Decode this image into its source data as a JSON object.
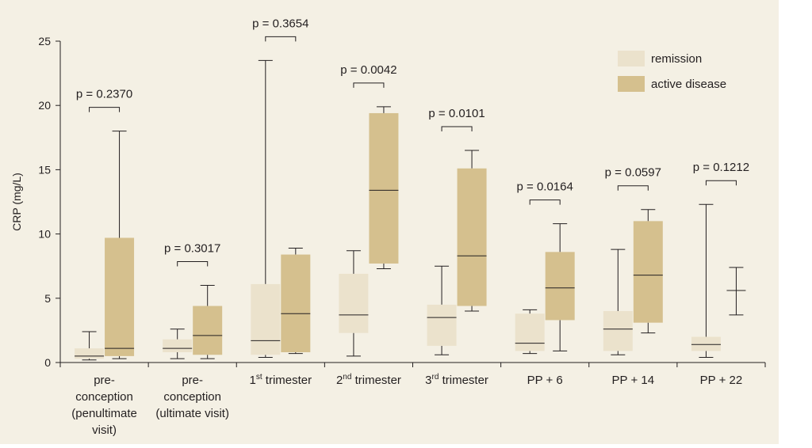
{
  "chart_data": {
    "type": "box",
    "ylabel": "CRP (mg/L)",
    "ylim": [
      0,
      25
    ],
    "yticks": [
      0,
      5,
      10,
      15,
      20,
      25
    ],
    "grid": false,
    "legend_position": "top-right",
    "colors": {
      "remission": "#ebe2cc",
      "active disease": "#d5c08e",
      "background": "#f4f0e4",
      "ink": "#231f20"
    },
    "series": [
      {
        "name": "remission"
      },
      {
        "name": "active disease"
      }
    ],
    "groups": [
      {
        "label_lines": [
          "pre-",
          "conception",
          "(penultimate",
          "visit)"
        ],
        "p_value": "p = 0.2370",
        "remission": {
          "min": 0.2,
          "q1": 0.3,
          "median": 0.5,
          "q3": 1.1,
          "max": 2.4
        },
        "active disease": {
          "min": 0.3,
          "q1": 0.5,
          "median": 1.1,
          "q3": 9.7,
          "max": 18.0
        }
      },
      {
        "label_lines": [
          "pre-",
          "conception",
          "(ultimate visit)"
        ],
        "p_value": "p = 0.3017",
        "remission": {
          "min": 0.3,
          "q1": 0.8,
          "median": 1.1,
          "q3": 1.8,
          "max": 2.6
        },
        "active disease": {
          "min": 0.3,
          "q1": 0.6,
          "median": 2.1,
          "q3": 4.4,
          "max": 6.0
        }
      },
      {
        "label_base": "1",
        "label_sup": "st",
        "label_rest": " trimester",
        "p_value": "p = 0.3654",
        "remission": {
          "min": 0.4,
          "q1": 0.6,
          "median": 1.7,
          "q3": 6.1,
          "max": 23.5
        },
        "active disease": {
          "min": 0.7,
          "q1": 0.8,
          "median": 3.8,
          "q3": 8.4,
          "max": 8.9
        }
      },
      {
        "label_base": "2",
        "label_sup": "nd",
        "label_rest": " trimester",
        "p_value": "p = 0.0042",
        "remission": {
          "min": 0.5,
          "q1": 2.3,
          "median": 3.7,
          "q3": 6.9,
          "max": 8.7
        },
        "active disease": {
          "min": 7.3,
          "q1": 7.7,
          "median": 13.4,
          "q3": 19.4,
          "max": 19.9
        }
      },
      {
        "label_base": "3",
        "label_sup": "rd",
        "label_rest": " trimester",
        "p_value": "p = 0.0101",
        "remission": {
          "min": 0.6,
          "q1": 1.3,
          "median": 3.5,
          "q3": 4.5,
          "max": 7.5
        },
        "active disease": {
          "min": 4.0,
          "q1": 4.4,
          "median": 8.3,
          "q3": 15.1,
          "max": 16.5
        }
      },
      {
        "label_lines": [
          "PP + 6"
        ],
        "p_value": "p = 0.0164",
        "remission": {
          "min": 0.7,
          "q1": 0.9,
          "median": 1.5,
          "q3": 3.8,
          "max": 4.1
        },
        "active disease": {
          "min": 0.9,
          "q1": 3.3,
          "median": 5.8,
          "q3": 8.6,
          "max": 10.8
        }
      },
      {
        "label_lines": [
          "PP + 14"
        ],
        "p_value": "p = 0.0597",
        "remission": {
          "min": 0.6,
          "q1": 0.9,
          "median": 2.6,
          "q3": 4.0,
          "max": 8.8
        },
        "active disease": {
          "min": 2.3,
          "q1": 3.1,
          "median": 6.8,
          "q3": 11.0,
          "max": 11.9
        }
      },
      {
        "label_lines": [
          "PP + 22"
        ],
        "p_value": "p = 0.1212",
        "remission": {
          "min": 0.4,
          "q1": 0.9,
          "median": 1.4,
          "q3": 2.0,
          "max": 12.3
        },
        "active disease": {
          "min": 3.7,
          "q1": 5.6,
          "median": 5.6,
          "q3": 5.6,
          "max": 7.4
        }
      }
    ]
  }
}
